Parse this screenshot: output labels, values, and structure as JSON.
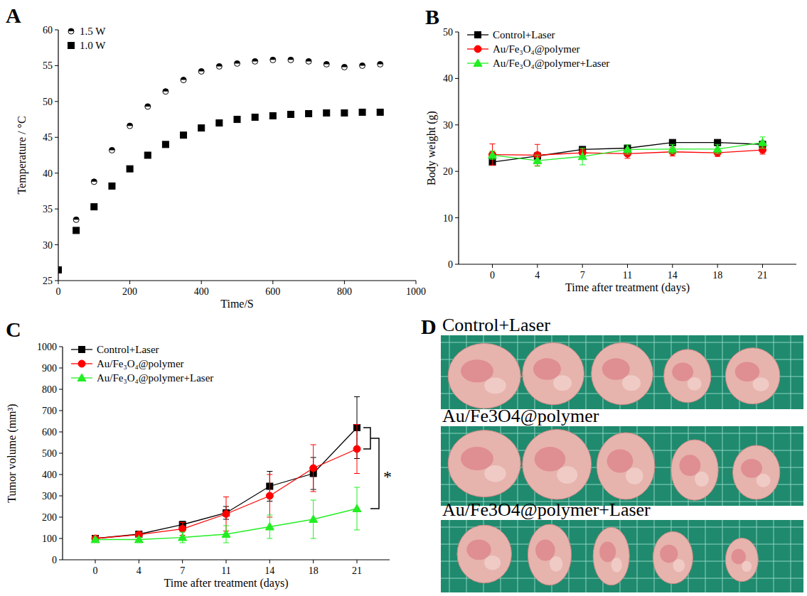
{
  "chart_data": [
    {
      "panel": "A",
      "type": "line",
      "x_label": "Time/S",
      "y_label": "Temperature / °C",
      "x": [
        0,
        50,
        100,
        150,
        200,
        250,
        300,
        350,
        400,
        450,
        500,
        550,
        600,
        650,
        700,
        750,
        800,
        850,
        900
      ],
      "xlim": [
        0,
        1000
      ],
      "xticks": [
        0,
        200,
        400,
        600,
        800,
        1000
      ],
      "ylim": [
        25,
        60
      ],
      "yticks": [
        25,
        30,
        35,
        40,
        45,
        50,
        55,
        60
      ],
      "legend": "top-left",
      "series": [
        {
          "name": "1.5 W",
          "color": "#000000",
          "marker": "half-circle",
          "line_style": "none",
          "values": [
            26.5,
            33.5,
            38.8,
            43.2,
            46.6,
            49.3,
            51.4,
            53.0,
            54.2,
            54.9,
            55.3,
            55.6,
            55.8,
            55.8,
            55.6,
            55.2,
            54.8,
            55.0,
            55.2
          ]
        },
        {
          "name": "1.0 W",
          "color": "#000000",
          "marker": "square",
          "line_style": "none",
          "values": [
            26.5,
            32.0,
            35.3,
            38.2,
            40.6,
            42.5,
            44.0,
            45.3,
            46.3,
            47.0,
            47.5,
            47.8,
            48.0,
            48.2,
            48.3,
            48.4,
            48.4,
            48.5,
            48.5
          ]
        }
      ]
    },
    {
      "panel": "B",
      "type": "line",
      "x_label": "Time after treatment (days)",
      "y_label": "Body weight (g)",
      "categories": [
        "0",
        "4",
        "7",
        "11",
        "14",
        "18",
        "21"
      ],
      "ylim": [
        0,
        50
      ],
      "yticks": [
        0,
        10,
        20,
        30,
        40,
        50
      ],
      "legend": "top-left",
      "series": [
        {
          "name": "Control+Laser",
          "color": "#000000",
          "marker": "square",
          "line_style": "solid",
          "values": [
            22.0,
            23.3,
            24.7,
            25.0,
            26.2,
            26.2,
            25.8
          ],
          "errors": [
            0.5,
            0.5,
            0.6,
            0.6,
            0.5,
            0.5,
            0.6
          ]
        },
        {
          "name": "Au/Fe₃O₄@polymer",
          "color": "#ff0000",
          "marker": "circle",
          "line_style": "solid",
          "values": [
            23.6,
            23.5,
            24.0,
            23.8,
            24.2,
            24.0,
            24.6
          ],
          "errors": [
            2.3,
            2.3,
            0.8,
            1.0,
            0.9,
            0.8,
            0.9
          ]
        },
        {
          "name": "Au/Fe₃O₄@polymer+Laser",
          "color": "#22ee22",
          "marker": "triangle",
          "line_style": "solid",
          "values": [
            23.5,
            22.3,
            23.2,
            24.7,
            24.8,
            24.8,
            26.2
          ],
          "errors": [
            0.9,
            1.2,
            1.8,
            1.0,
            1.0,
            1.0,
            1.2
          ]
        }
      ]
    },
    {
      "panel": "C",
      "type": "line",
      "x_label": "Time after treatment (days)",
      "y_label": "Tumor volume (mm³)",
      "categories": [
        "0",
        "4",
        "7",
        "11",
        "14",
        "18",
        "21"
      ],
      "ylim": [
        0,
        1000
      ],
      "yticks": [
        0,
        100,
        200,
        300,
        400,
        500,
        600,
        700,
        800,
        900,
        1000
      ],
      "legend": "top-left",
      "annotation": "*",
      "series": [
        {
          "name": "Control+Laser",
          "color": "#000000",
          "marker": "square",
          "line_style": "solid",
          "values": [
            100,
            120,
            165,
            220,
            345,
            405,
            620
          ],
          "errors": [
            5,
            8,
            15,
            30,
            70,
            75,
            145
          ]
        },
        {
          "name": "Au/Fe₃O₄@polymer",
          "color": "#ff0000",
          "marker": "circle",
          "line_style": "solid",
          "values": [
            100,
            118,
            145,
            215,
            300,
            430,
            520
          ],
          "errors": [
            5,
            10,
            30,
            80,
            100,
            110,
            115
          ]
        },
        {
          "name": "Au/Fe₃O₄@polymer+Laser",
          "color": "#22ee22",
          "marker": "triangle",
          "line_style": "solid",
          "values": [
            95,
            95,
            105,
            120,
            155,
            190,
            240
          ],
          "errors": [
            5,
            10,
            25,
            40,
            55,
            90,
            100
          ]
        }
      ]
    }
  ],
  "photo_panel": {
    "panel": "D",
    "groups": [
      "Control+Laser",
      "Au/Fe3O4@polymer",
      "Au/Fe3O4@polymer+Laser"
    ]
  }
}
